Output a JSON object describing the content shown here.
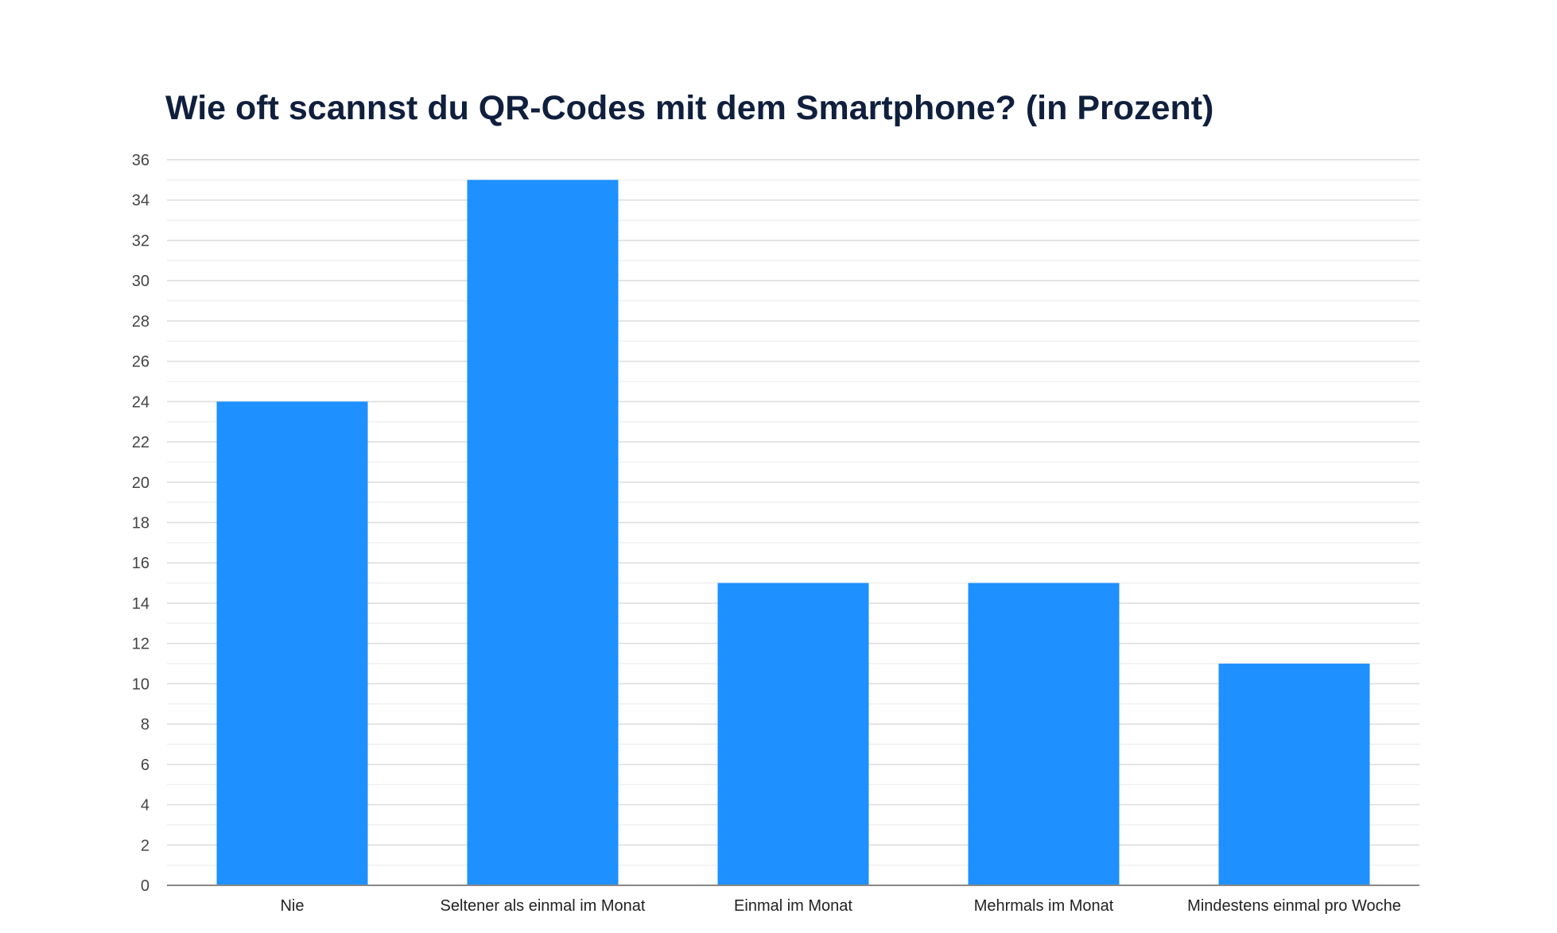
{
  "chart_data": {
    "type": "bar",
    "title": "Wie oft scannst du QR-Codes mit dem Smartphone? (in Prozent)",
    "categories": [
      "Nie",
      "Seltener als einmal im Monat",
      "Einmal im Monat",
      "Mehrmals im Monat",
      "Mindestens einmal pro Woche"
    ],
    "values": [
      24,
      35,
      15,
      15,
      11
    ],
    "xlabel": "",
    "ylabel": "",
    "ylim": [
      0,
      36
    ],
    "yticks": [
      0,
      2,
      4,
      6,
      8,
      10,
      12,
      14,
      16,
      18,
      20,
      22,
      24,
      26,
      28,
      30,
      32,
      34,
      36
    ],
    "grid": true,
    "legend": "none",
    "bar_color": "#1e90ff"
  }
}
